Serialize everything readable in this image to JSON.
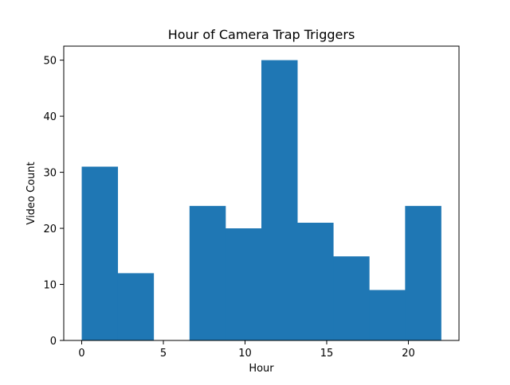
{
  "chart_data": {
    "type": "bar",
    "title": "Hour of Camera Trap Triggers",
    "xlabel": "Hour",
    "ylabel": "Video Count",
    "xlim": [
      -1.1,
      23.1
    ],
    "ylim": [
      0,
      52.5
    ],
    "xticks": [
      0,
      5,
      10,
      15,
      20
    ],
    "yticks": [
      0,
      10,
      20,
      30,
      40,
      50
    ],
    "bin_edges": [
      0,
      2.2,
      4.4,
      6.6,
      8.8,
      11.0,
      13.2,
      15.4,
      17.6,
      19.8,
      22.0
    ],
    "values": [
      31,
      12,
      0,
      24,
      20,
      50,
      21,
      15,
      9,
      24
    ],
    "bar_color": "#1f77b4",
    "grid": false,
    "legend": "none"
  }
}
